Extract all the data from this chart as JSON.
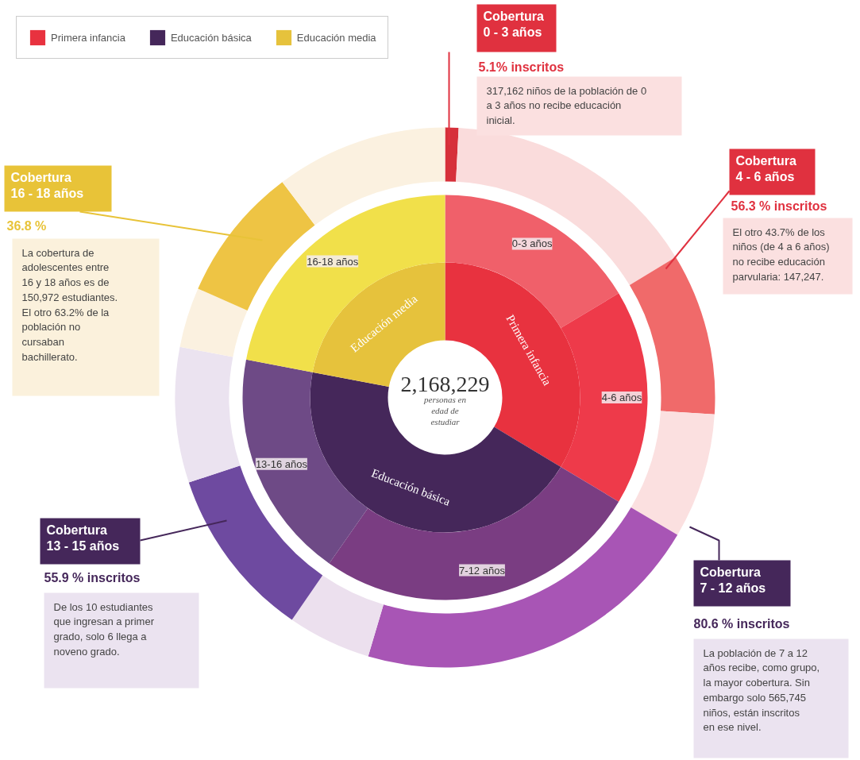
{
  "chart_data": [
    {
      "type": "donut",
      "categories": [
        "Primera infancia",
        "Educación básica",
        "Educación media"
      ],
      "values": [
        33.6,
        44.4,
        22.0
      ],
      "colors": [
        "#e8323f",
        "#45275a",
        "#e6c23c"
      ],
      "legend": "top left"
    },
    {
      "type": "donut",
      "categories": [
        "0-3 años",
        "4-6 años",
        "7-12 años",
        "13-16 años",
        "16-18 años"
      ],
      "values": [
        16.4,
        17.2,
        26.1,
        18.3,
        22.0
      ],
      "colors": [
        "#f0606a",
        "#ee3a4a",
        "#7a3d82",
        "#6e4a86",
        "#f1e04a"
      ]
    },
    {
      "type": "donut",
      "categories": [
        null,
        null,
        null,
        null,
        null,
        null,
        null,
        null,
        null,
        null,
        null
      ],
      "values": [
        0.8,
        15.5,
        9.7,
        7.5,
        21.1,
        5.0,
        10.3,
        8.1,
        3.6,
        8.1,
        10.3
      ],
      "colors": [
        "#d6303a",
        "#fadcdc",
        "#f06a6a",
        "#fbe0e0",
        "#a855b5",
        "#ece0ee",
        "#6e4aa0",
        "#ebe3f0",
        "#fbf1e0",
        "#eec444",
        "#fbf1e0"
      ],
      "annotations": [
        "Cobertura 0 - 3 años",
        "5.1% inscritos",
        "317,162 niños de la población de 0 a 3 años no recibe educación inicial.",
        "Cobertura 4 - 6 años",
        "56.3 % inscritos",
        "El otro 43.7% de los niños (de 4 a 6 años) no recibe educación parvularia: 147,247.",
        "Cobertura 7 - 12 años",
        "80.6 % inscritos",
        "La población de 7 a 12 años recibe, como grupo, la mayor cobertura. Sin embargo solo 565,745 niños, están inscritos en ese nivel.",
        "Cobertura 13 - 15 años",
        "55.9 % inscritos",
        "De los 10 estudiantes que ingresan a primer grado, solo 6 llega a noveno grado.",
        "Cobertura 16 - 18 años",
        "36.8 %",
        "La cobertura de adolescentes entre 16 y 18 años es de 150,972 estudiantes. El otro 63.2% de la población no cursaban bachillerato.",
        "2,168,229",
        "personas en edad de estudiar"
      ]
    }
  ]
}
